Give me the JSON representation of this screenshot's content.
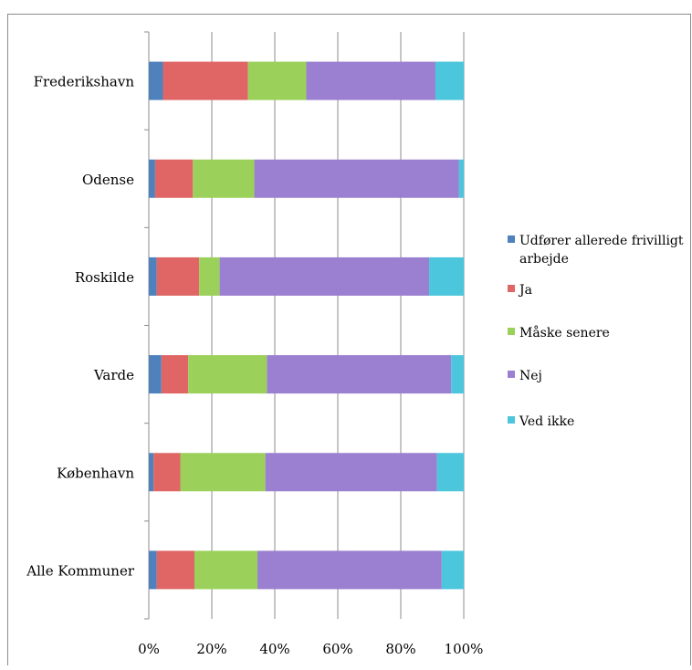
{
  "chart_data": {
    "type": "bar",
    "orientation": "horizontal",
    "stacked": "percent",
    "categories": [
      "Frederikshavn",
      "Odense",
      "Roskilde",
      "Varde",
      "København",
      "Alle Kommuner"
    ],
    "series": [
      {
        "name": "Udfører allerede frivilligt arbejde",
        "color": "#4f81bd",
        "values": [
          4.5,
          2.0,
          2.5,
          4.0,
          1.5,
          2.5
        ]
      },
      {
        "name": "Ja",
        "color": "#e06666",
        "values": [
          27.0,
          12.0,
          13.5,
          8.5,
          8.5,
          12.0
        ]
      },
      {
        "name": "Måske senere",
        "color": "#9bd15a",
        "values": [
          18.5,
          19.5,
          6.5,
          25.0,
          27.0,
          20.0
        ]
      },
      {
        "name": "Nej",
        "color": "#9b7fd1",
        "values": [
          41.0,
          65.0,
          66.5,
          58.5,
          54.5,
          58.5
        ]
      },
      {
        "name": "Ved ikke",
        "color": "#4bc6dc",
        "values": [
          9.0,
          1.5,
          11.0,
          4.0,
          8.5,
          7.0
        ]
      }
    ],
    "xlim": [
      0,
      100
    ],
    "xticks": [
      "0%",
      "20%",
      "40%",
      "60%",
      "80%",
      "100%"
    ],
    "legend_position": "right",
    "grid": "vertical"
  }
}
